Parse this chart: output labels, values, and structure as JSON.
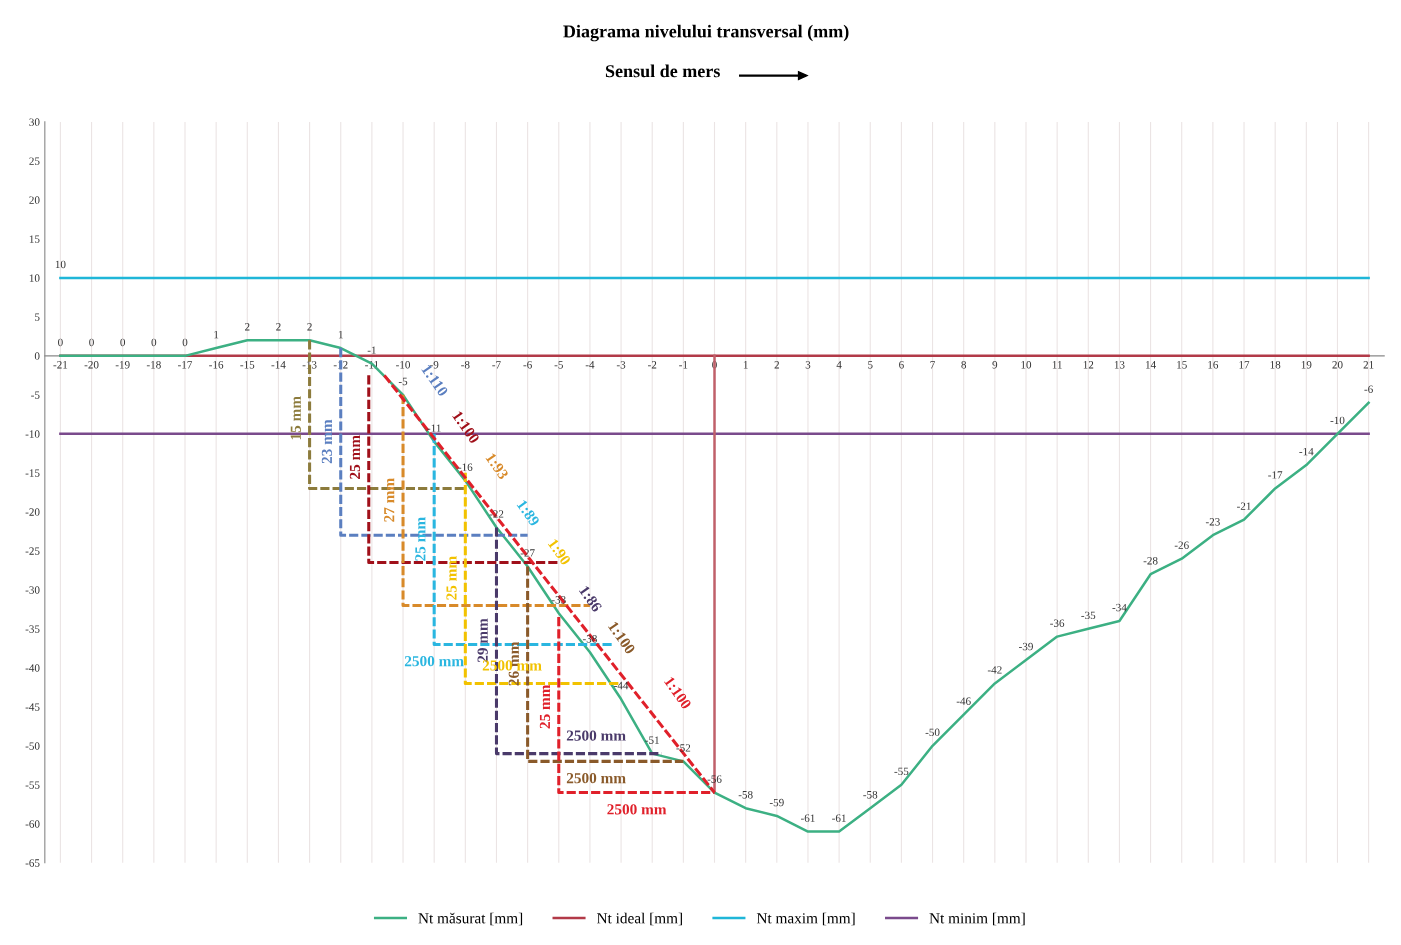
{
  "chart_data": {
    "type": "line",
    "title": "Diagrama nivelului transversal (mm)",
    "subtitle": "Sensul de mers",
    "xlim": [
      -21.5,
      21.5
    ],
    "xticks": [
      -21,
      -20,
      -19,
      -18,
      -17,
      -16,
      -15,
      -14,
      -13,
      -12,
      -11,
      -10,
      -9,
      -8,
      -7,
      -6,
      -5,
      -4,
      -3,
      -2,
      -1,
      0,
      1,
      2,
      3,
      4,
      5,
      6,
      7,
      8,
      9,
      10,
      11,
      12,
      13,
      14,
      15,
      16,
      17,
      18,
      19,
      20,
      21
    ],
    "ylim": [
      -65,
      30
    ],
    "yticks": [
      30,
      25,
      20,
      15,
      10,
      5,
      0,
      -5,
      -10,
      -15,
      -20,
      -25,
      -30,
      -35,
      -40,
      -45,
      -50,
      -55,
      -60,
      -65
    ],
    "grid": "x",
    "legend": "bottom",
    "line_style": "solid",
    "series": [
      {
        "name": "Nt măsurat [mm]",
        "color": "#3cb083",
        "x": [
          -21,
          -20,
          -19,
          -18,
          -17,
          -16,
          -15,
          -14,
          -13,
          -12,
          -11,
          -10,
          -9,
          -8,
          -7,
          -6,
          -5,
          -4,
          -3,
          -2,
          -1,
          0,
          1,
          2,
          3,
          4,
          5,
          6,
          7,
          8,
          9,
          10,
          11,
          12,
          13,
          14,
          15,
          16,
          17,
          18,
          19,
          20,
          21
        ],
        "values": [
          0,
          0,
          0,
          0,
          0,
          1,
          2,
          2,
          2,
          1,
          -1,
          -5,
          -11,
          -16,
          -22,
          -27,
          -33,
          -38,
          -44,
          -51,
          -52,
          -56,
          -58,
          -59,
          -61,
          -61,
          -58,
          -55,
          -50,
          -46,
          -42,
          -39,
          -36,
          -35,
          -34,
          -28,
          -26,
          -23,
          -21,
          -17,
          -14,
          -10,
          -6
        ],
        "value_labels": [
          "0",
          "0",
          "0",
          "0",
          "0",
          "1",
          "2",
          "2",
          "2",
          "1",
          "-1",
          "-5",
          "-11",
          "-16",
          "-22",
          "-27",
          "-33",
          "-38",
          "-44",
          "-51",
          "-52",
          "-56",
          "-58",
          "-59",
          "-61",
          "-61",
          "-58",
          "-55",
          "-50",
          "-46",
          "-42",
          "-39",
          "-36",
          "-35",
          "-34",
          "-28",
          "-26",
          "-23",
          "-21",
          "-17",
          "-14",
          "-10",
          "-6"
        ]
      },
      {
        "name": "Nt ideal [mm]",
        "color": "#b23a48",
        "x": [
          -21,
          21
        ],
        "values": [
          0,
          0
        ]
      },
      {
        "name": "Nt maxim [mm]",
        "color": "#1fb6d8",
        "x": [
          -21,
          21
        ],
        "values": [
          10,
          10
        ],
        "value_labels": [
          "10",
          null
        ]
      },
      {
        "name": "Nt minim [mm]",
        "color": "#7a4a8c",
        "x": [
          -21,
          21
        ],
        "values": [
          -10,
          -10
        ]
      },
      {
        "color": "#c0606a",
        "x": [
          0,
          0
        ],
        "values": [
          0,
          -56
        ]
      },
      {
        "color": "#8c7b3c",
        "line_style": "dashed",
        "x": [
          -13,
          -13,
          -8
        ],
        "values": [
          2,
          -17,
          -17
        ]
      },
      {
        "color": "#5b7fc0",
        "line_style": "dashed",
        "x": [
          -12,
          -12,
          -6
        ],
        "values": [
          1,
          -23,
          -23
        ]
      },
      {
        "color": "#a0101a",
        "line_style": "dashed",
        "x": [
          -11.1,
          -11.1,
          -5
        ],
        "values": [
          -2.5,
          -26.5,
          -26.5
        ]
      },
      {
        "color": "#d88a2a",
        "line_style": "dashed",
        "x": [
          -10,
          -10,
          -4
        ],
        "values": [
          -5,
          -32,
          -32
        ]
      },
      {
        "color": "#2ab6e0",
        "line_style": "dashed",
        "x": [
          -9,
          -9,
          -3.3
        ],
        "values": [
          -10,
          -37,
          -37
        ]
      },
      {
        "color": "#f2c200",
        "line_style": "dashed",
        "x": [
          -8,
          -8,
          -3
        ],
        "values": [
          -15,
          -42,
          -42
        ]
      },
      {
        "color": "#4a3a6a",
        "line_style": "dashed",
        "x": [
          -7,
          -7,
          -1.7
        ],
        "values": [
          -22,
          -51,
          -51
        ]
      },
      {
        "color": "#8a5a2a",
        "line_style": "dashed",
        "x": [
          -6,
          -6,
          -1
        ],
        "values": [
          -27,
          -52,
          -52
        ]
      },
      {
        "color": "#e0202a",
        "line_style": "dashed",
        "x": [
          -5,
          -5,
          0
        ],
        "values": [
          -33.5,
          -56,
          -56
        ]
      },
      {
        "color": "#e0202a",
        "line_style": "dashed",
        "x": [
          -10.6,
          0
        ],
        "values": [
          -2.5,
          -56
        ]
      }
    ],
    "annotations": [
      {
        "text": "15 mm",
        "x": -13,
        "y": -8
      },
      {
        "text": "23 mm",
        "x": -12,
        "y": -11
      },
      {
        "text": "25 mm",
        "x": -11.1,
        "y": -13
      },
      {
        "text": "27 mm",
        "x": -10,
        "y": -18.5
      },
      {
        "text": "25 mm",
        "x": -9,
        "y": -23.5
      },
      {
        "text": "25 mm",
        "x": -8,
        "y": -28.5
      },
      {
        "text": "29 mm",
        "x": -7,
        "y": -36.5
      },
      {
        "text": "26 mm",
        "x": -6,
        "y": -39.5
      },
      {
        "text": "25 mm",
        "x": -5,
        "y": -45
      },
      {
        "text": "1:110",
        "x": -10,
        "y": -5
      },
      {
        "text": "1:100",
        "x": -9,
        "y": -11
      },
      {
        "text": "1:93",
        "x": -8,
        "y": -16
      },
      {
        "text": "1:89",
        "x": -7,
        "y": -22
      },
      {
        "text": "1:90",
        "x": -6,
        "y": -27
      },
      {
        "text": "1:86",
        "x": -5,
        "y": -33
      },
      {
        "text": "1:100",
        "x": -4,
        "y": -38
      },
      {
        "text": "1:100",
        "x": -3,
        "y": -44
      },
      {
        "text": "2500 mm",
        "x": -9,
        "y": -37
      },
      {
        "text": "2500 mm",
        "x": -6.5,
        "y": -42
      },
      {
        "text": "2500 mm",
        "x": -3.8,
        "y": -51
      },
      {
        "text": "2500 mm",
        "x": -3.8,
        "y": -52
      },
      {
        "text": "2500 mm",
        "x": -2.5,
        "y": -56
      }
    ]
  }
}
